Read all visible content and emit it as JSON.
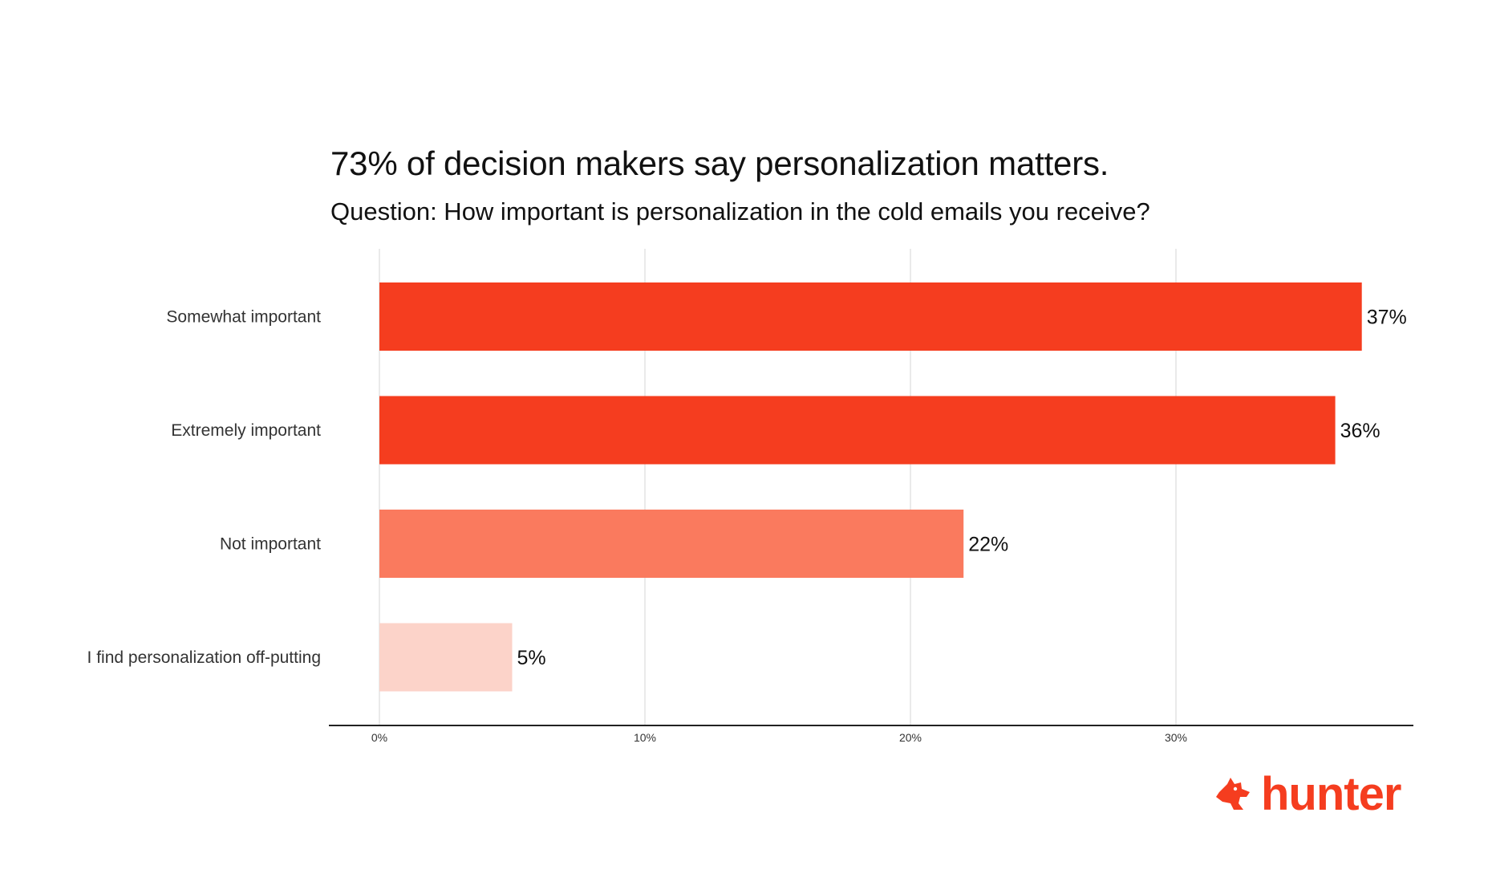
{
  "brand": {
    "name": "hunter",
    "icon": "fox-icon",
    "color": "#f53d1f"
  },
  "chart_data": {
    "type": "bar",
    "orientation": "horizontal",
    "title": "73% of decision makers say personalization matters.",
    "subtitle": "Question: How important is personalization in the cold emails you receive?",
    "categories": [
      "Somewhat important",
      "Extremely important",
      "Not important",
      "I find personalization off-putting"
    ],
    "values": [
      37,
      36,
      22,
      5
    ],
    "value_labels": [
      "37%",
      "36%",
      "22%",
      "5%"
    ],
    "colors": [
      "#f53d1f",
      "#f53d1f",
      "#fa7a5e",
      "#fcd3c9"
    ],
    "xlim": [
      0,
      38
    ],
    "xticks": [
      0,
      10,
      20,
      30
    ],
    "xtick_labels": [
      "0%",
      "10%",
      "20%",
      "30%"
    ],
    "xlabel": "",
    "ylabel": "",
    "grid": "vertical",
    "legend": "none"
  }
}
